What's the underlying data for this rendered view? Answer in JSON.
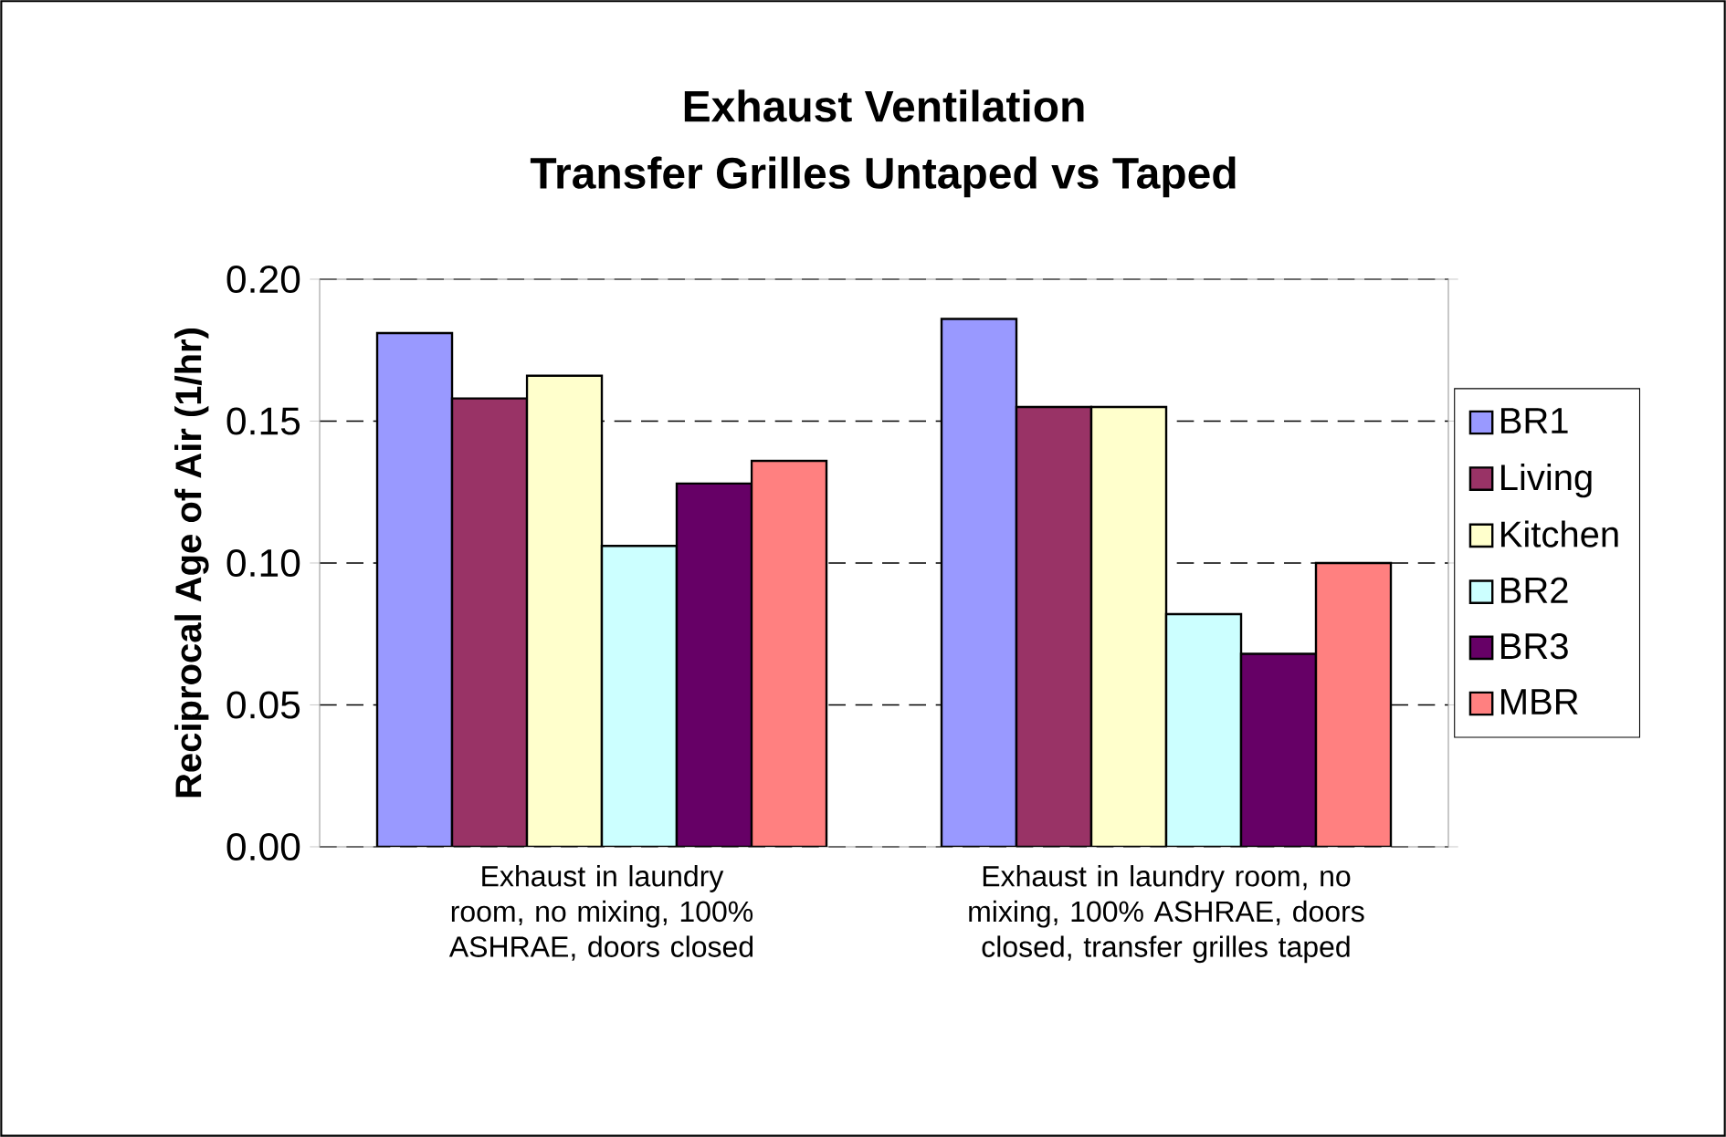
{
  "chart_data": {
    "type": "bar",
    "title": "Exhaust Ventilation",
    "subtitle": "Transfer Grilles Untaped vs Taped",
    "ylabel": "Reciprocal Age of Air (1/hr)",
    "categories": [
      "Exhaust in laundry room, no mixing, 100% ASHRAE, doors closed",
      "Exhaust in laundry room, no mixing, 100% ASHRAE, doors closed, transfer grilles taped"
    ],
    "series": [
      {
        "name": "BR1",
        "color": "#9999ff",
        "values": [
          0.181,
          0.186
        ]
      },
      {
        "name": "Living",
        "color": "#993366",
        "values": [
          0.158,
          0.155
        ]
      },
      {
        "name": "Kitchen",
        "color": "#ffffcc",
        "values": [
          0.166,
          0.155
        ]
      },
      {
        "name": "BR2",
        "color": "#ccffff",
        "values": [
          0.106,
          0.082
        ]
      },
      {
        "name": "BR3",
        "color": "#660066",
        "values": [
          0.128,
          0.068
        ]
      },
      {
        "name": "MBR",
        "color": "#ff8080",
        "values": [
          0.136,
          0.1
        ]
      }
    ],
    "ylim": [
      0,
      0.2
    ],
    "yticks": [
      {
        "value": 0,
        "label": "0.00"
      },
      {
        "value": 0.05,
        "label": "0.05"
      },
      {
        "value": 0.1,
        "label": "0.10"
      },
      {
        "value": 0.15,
        "label": "0.15"
      },
      {
        "value": 0.2,
        "label": "0.20"
      }
    ],
    "grid": "y",
    "legend": "right"
  }
}
